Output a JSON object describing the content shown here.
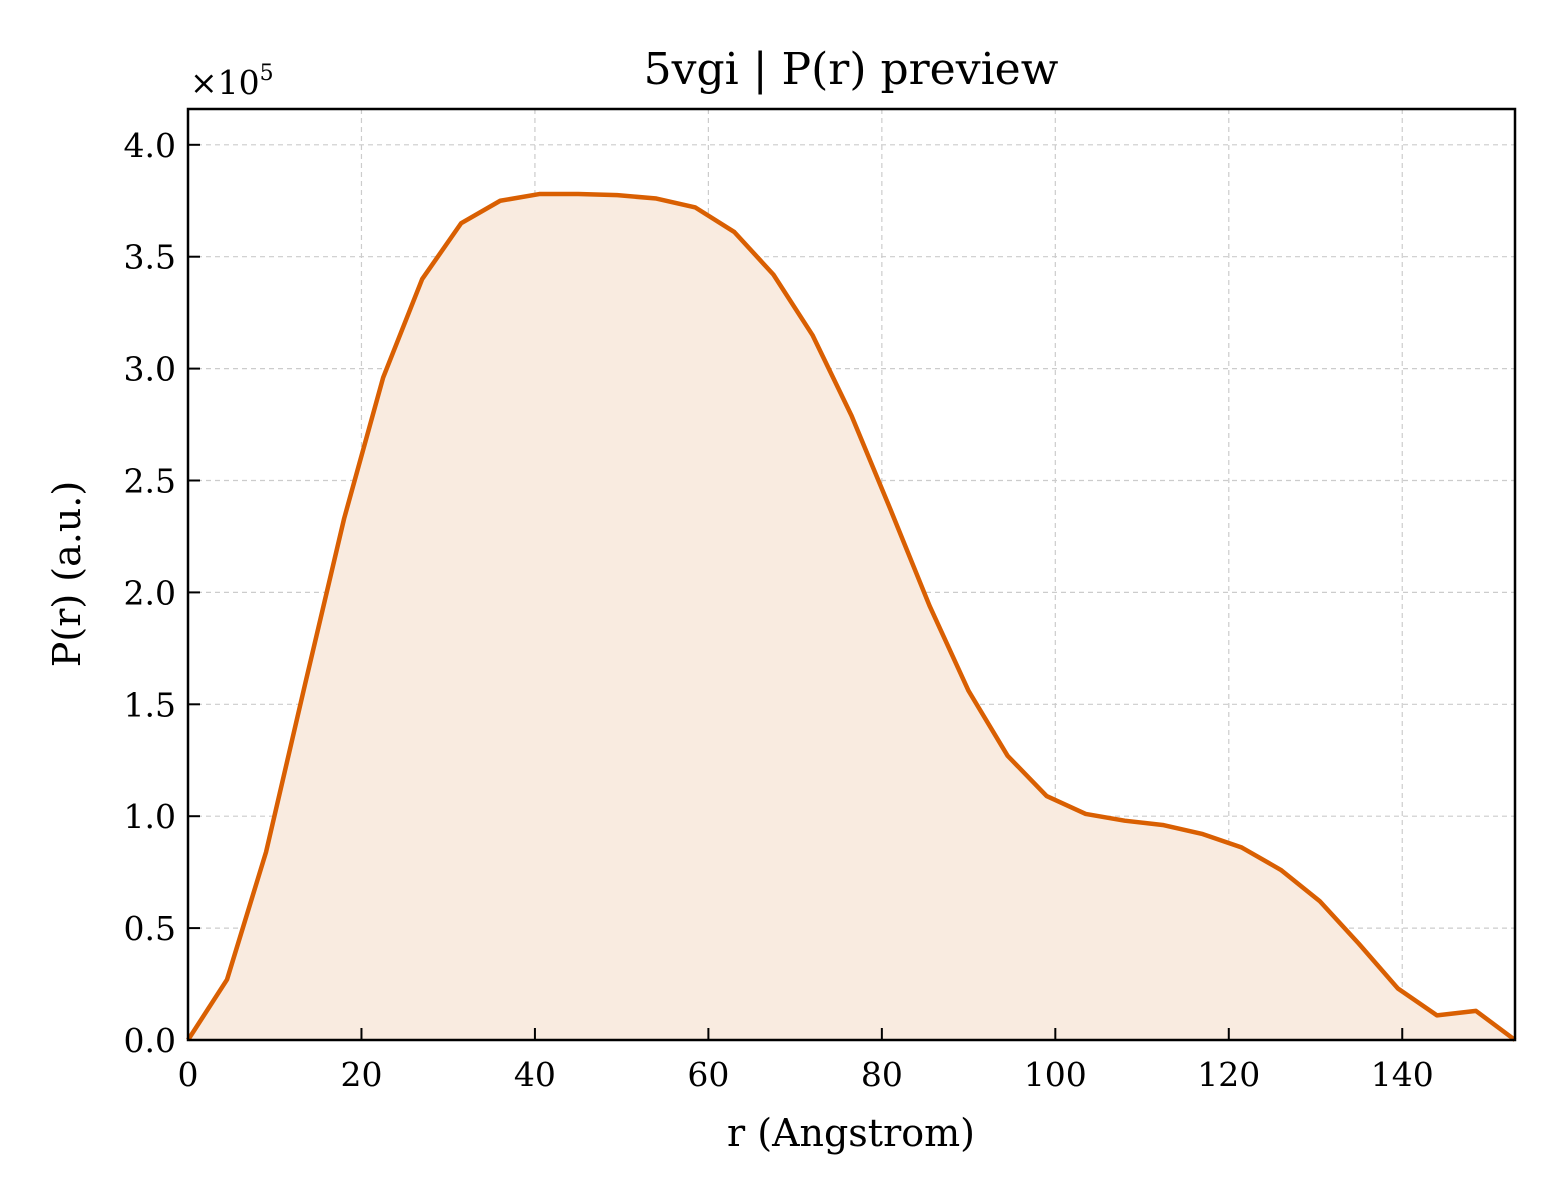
{
  "chart_data": {
    "type": "area",
    "title": "5vgi | P(r) preview",
    "xlabel": "r (Angstrom)",
    "ylabel": "P(r) (a.u.)",
    "y_offset_label": "×10",
    "y_offset_exponent": "5",
    "xlim": [
      0,
      153
    ],
    "ylim": [
      0,
      4.16
    ],
    "y_scale_factor": 100000,
    "x_ticks": [
      0,
      20,
      40,
      60,
      80,
      100,
      120,
      140
    ],
    "x_tick_labels": [
      "0",
      "20",
      "40",
      "60",
      "80",
      "100",
      "120",
      "140"
    ],
    "y_ticks": [
      0,
      0.5,
      1.0,
      1.5,
      2.0,
      2.5,
      3.0,
      3.5,
      4.0
    ],
    "y_tick_labels": [
      "0.0",
      "0.5",
      "1.0",
      "1.5",
      "2.0",
      "2.5",
      "3.0",
      "3.5",
      "4.0"
    ],
    "grid": true,
    "line_color": "#d95f02",
    "fill_color": "#f9ebe0",
    "series": [
      {
        "x": [
          0,
          4.5,
          9.0,
          13.5,
          18.0,
          22.5,
          27.0,
          31.5,
          36.0,
          40.5,
          45.0,
          49.5,
          54.0,
          58.5,
          63.0,
          67.5,
          72.0,
          76.5,
          81.0,
          85.5,
          90.0,
          94.5,
          99.0,
          103.5,
          108.0,
          112.5,
          117.0,
          121.5,
          126.0,
          130.5,
          135.0,
          139.5,
          144.0,
          148.5,
          153.0
        ],
        "y": [
          0.0,
          0.27,
          0.84,
          1.59,
          2.33,
          2.96,
          3.4,
          3.65,
          3.75,
          3.78,
          3.78,
          3.775,
          3.76,
          3.72,
          3.61,
          3.42,
          3.15,
          2.79,
          2.37,
          1.94,
          1.56,
          1.27,
          1.09,
          1.01,
          0.98,
          0.96,
          0.92,
          0.86,
          0.76,
          0.62,
          0.43,
          0.23,
          0.11,
          0.13,
          0.0
        ]
      }
    ]
  }
}
